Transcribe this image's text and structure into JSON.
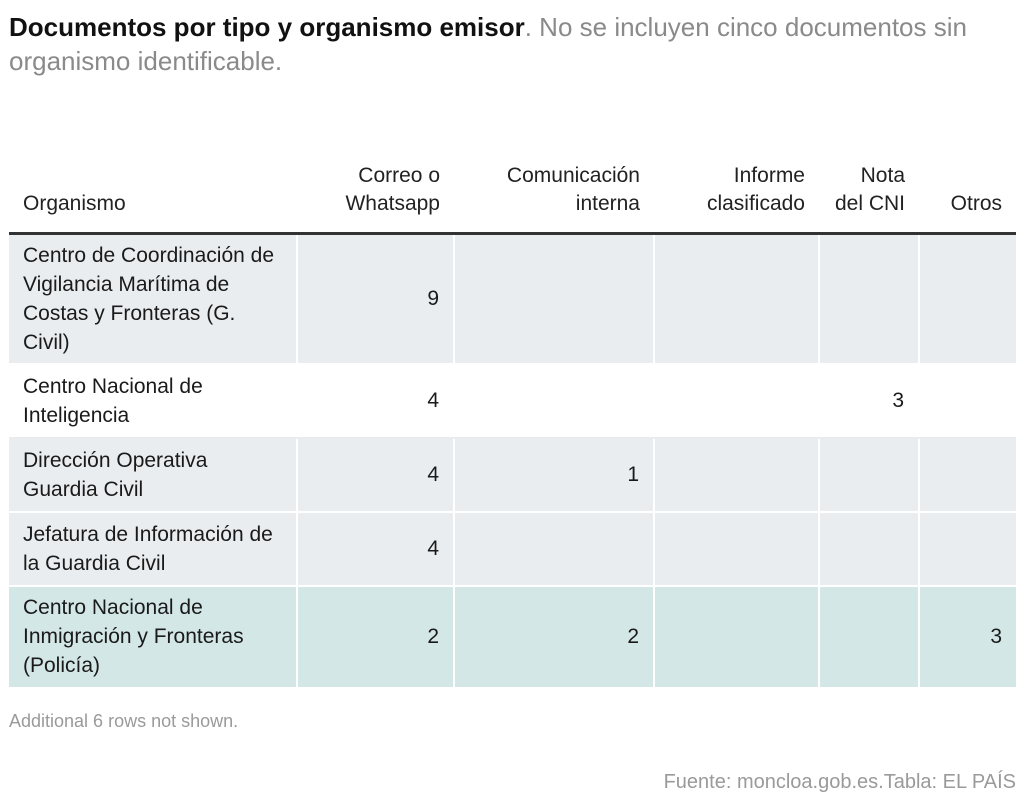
{
  "title": {
    "bold": "Documentos por tipo y organismo emisor",
    "rest": ". No se incluyen cinco documentos sin organismo identificable."
  },
  "chart_data": {
    "type": "table",
    "columns": [
      "Organismo",
      "Correo o Whatsapp",
      "Comunicación interna",
      "Informe clasificado",
      "Nota del CNI",
      "Otros"
    ],
    "rows": [
      {
        "organismo": "Centro de Coordinación de Vigilancia Marítima de Costas y Fronteras (G. Civil)",
        "values": [
          "9",
          "",
          "",
          "",
          ""
        ],
        "style": "gray"
      },
      {
        "organismo": "Centro Nacional de Inteligencia",
        "values": [
          "4",
          "",
          "",
          "3",
          ""
        ],
        "style": "white"
      },
      {
        "organismo": "Dirección Operativa Guardia Civil",
        "values": [
          "4",
          "1",
          "",
          "",
          ""
        ],
        "style": "gray"
      },
      {
        "organismo": "Jefatura de Información de la Guardia Civil",
        "values": [
          "4",
          "",
          "",
          "",
          ""
        ],
        "style": "gray"
      },
      {
        "organismo": "Centro Nacional de Inmigración y Fronteras (Policía)",
        "values": [
          "2",
          "2",
          "",
          "",
          "3"
        ],
        "style": "teal"
      }
    ]
  },
  "colors": {
    "gray_row": "#eaedf0",
    "teal_row": "#d3e7e6",
    "header_rule": "#333333",
    "muted_text": "#9a9a9a"
  },
  "footnote": "Additional 6 rows not shown.",
  "source": "Fuente: moncloa.gob.es.Tabla: EL PAÍS"
}
